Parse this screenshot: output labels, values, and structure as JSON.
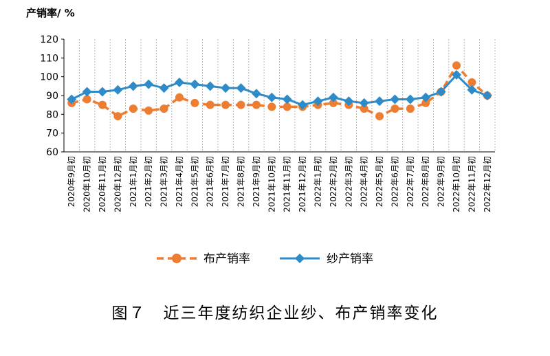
{
  "chart_data": {
    "type": "line",
    "ylabel": "产销率/ %",
    "ylim": [
      60,
      120
    ],
    "yticks": [
      60,
      70,
      80,
      90,
      100,
      110,
      120
    ],
    "grid": "vertical dashed",
    "legend_position": "bottom",
    "categories": [
      "2020年9月初",
      "2020年10月初",
      "2020年11月初",
      "2020年12月初",
      "2021年1月初",
      "2021年2月初",
      "2021年3月初",
      "2021年4月初",
      "2021年5月初",
      "2021年6月初",
      "2021年7月初",
      "2021年8月初",
      "2021年9月初",
      "2021年10月初",
      "2021年11月初",
      "2021年12月初",
      "2022年1月初",
      "2022年2月初",
      "2022年3月初",
      "2022年4月初",
      "2022年5月初",
      "2022年6月初",
      "2022年7月初",
      "2022年8月初",
      "2022年9月初",
      "2022年10月初",
      "2022年11月初",
      "2022年12月初"
    ],
    "series": [
      {
        "name": "布产销率",
        "color": "#ED7D31",
        "style": "dashed",
        "marker": "circle",
        "values": [
          86,
          88,
          85,
          79,
          83,
          82,
          83,
          89,
          86,
          85,
          85,
          85,
          85,
          84,
          84,
          84,
          85,
          86,
          85,
          83,
          79,
          83,
          83,
          86,
          92,
          106,
          97,
          90
        ]
      },
      {
        "name": "纱产销率",
        "color": "#2E8BC8",
        "style": "solid",
        "marker": "diamond",
        "values": [
          88,
          92,
          92,
          93,
          95,
          96,
          94,
          97,
          96,
          95,
          94,
          94,
          91,
          89,
          88,
          85,
          87,
          89,
          87,
          86,
          87,
          88,
          88,
          89,
          92,
          101,
          93,
          90
        ]
      }
    ],
    "caption": "图７　近三年度纺织企业纱、布产销率变化"
  }
}
